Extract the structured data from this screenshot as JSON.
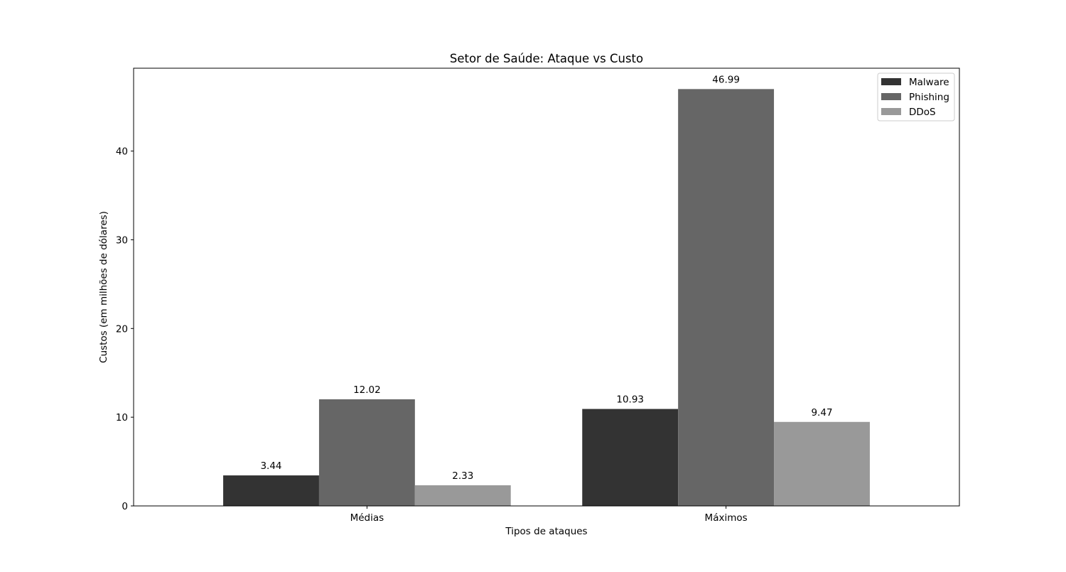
{
  "chart_data": {
    "type": "bar",
    "title": "Setor de Saúde: Ataque vs Custo",
    "xlabel": "Tipos de ataques",
    "ylabel": "Custos (em milhões de dólares)",
    "categories": [
      "Médias",
      "Máximos"
    ],
    "series": [
      {
        "name": "Malware",
        "values": [
          3.44,
          10.93
        ],
        "color": "#333333"
      },
      {
        "name": "Phishing",
        "values": [
          12.02,
          46.99
        ],
        "color": "#666666"
      },
      {
        "name": "DDoS",
        "values": [
          2.33,
          9.47
        ],
        "color": "#999999"
      }
    ],
    "ylim": [
      0,
      49.34
    ],
    "yticks": [
      0,
      10,
      20,
      30,
      40
    ],
    "grid": false,
    "legend_position": "top-right",
    "show_value_labels": true
  }
}
